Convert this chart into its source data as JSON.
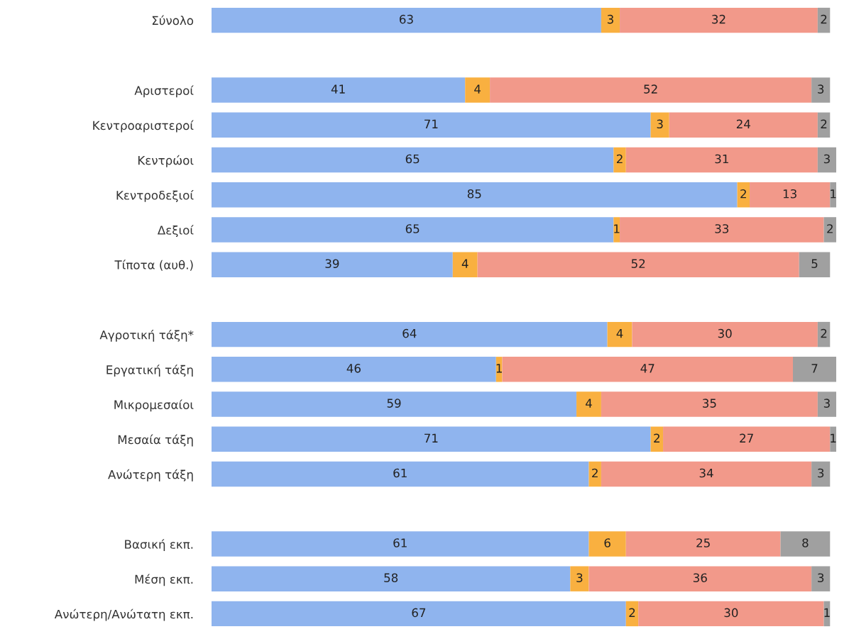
{
  "chart_data": {
    "type": "bar",
    "orientation": "horizontal",
    "stacked": true,
    "data_labels": true,
    "xlim": [
      0,
      101
    ],
    "categories": [
      "Σύνολο",
      null,
      "Αριστεροί",
      "Κεντροαριστεροί",
      "Κεντρώοι",
      "Κεντροδεξιοί",
      "Δεξιοί",
      "Τίποτα (αυθ.)",
      null,
      "Αγροτική τάξη*",
      "Εργατική τάξη",
      "Μικρομεσαίοι",
      "Μεσαία τάξη",
      "Ανώτερη τάξη",
      null,
      "Βασική εκπ.",
      "Μέση εκπ.",
      "Ανώτερη/Ανώτατη εκπ."
    ],
    "series": [
      {
        "color": "#8fb4ee",
        "values": [
          63,
          null,
          41,
          71,
          65,
          85,
          65,
          39,
          null,
          64,
          46,
          59,
          71,
          61,
          null,
          61,
          58,
          67
        ]
      },
      {
        "color": "#f9b040",
        "values": [
          3,
          null,
          4,
          3,
          2,
          2,
          1,
          4,
          null,
          4,
          1,
          4,
          2,
          2,
          null,
          6,
          3,
          2
        ]
      },
      {
        "color": "#f2998a",
        "values": [
          32,
          null,
          52,
          24,
          31,
          13,
          33,
          52,
          null,
          30,
          47,
          35,
          27,
          34,
          null,
          25,
          36,
          30
        ]
      },
      {
        "color": "#a0a0a0",
        "values": [
          2,
          null,
          3,
          2,
          3,
          1,
          2,
          5,
          null,
          2,
          7,
          3,
          1,
          3,
          null,
          8,
          3,
          1
        ]
      }
    ]
  }
}
